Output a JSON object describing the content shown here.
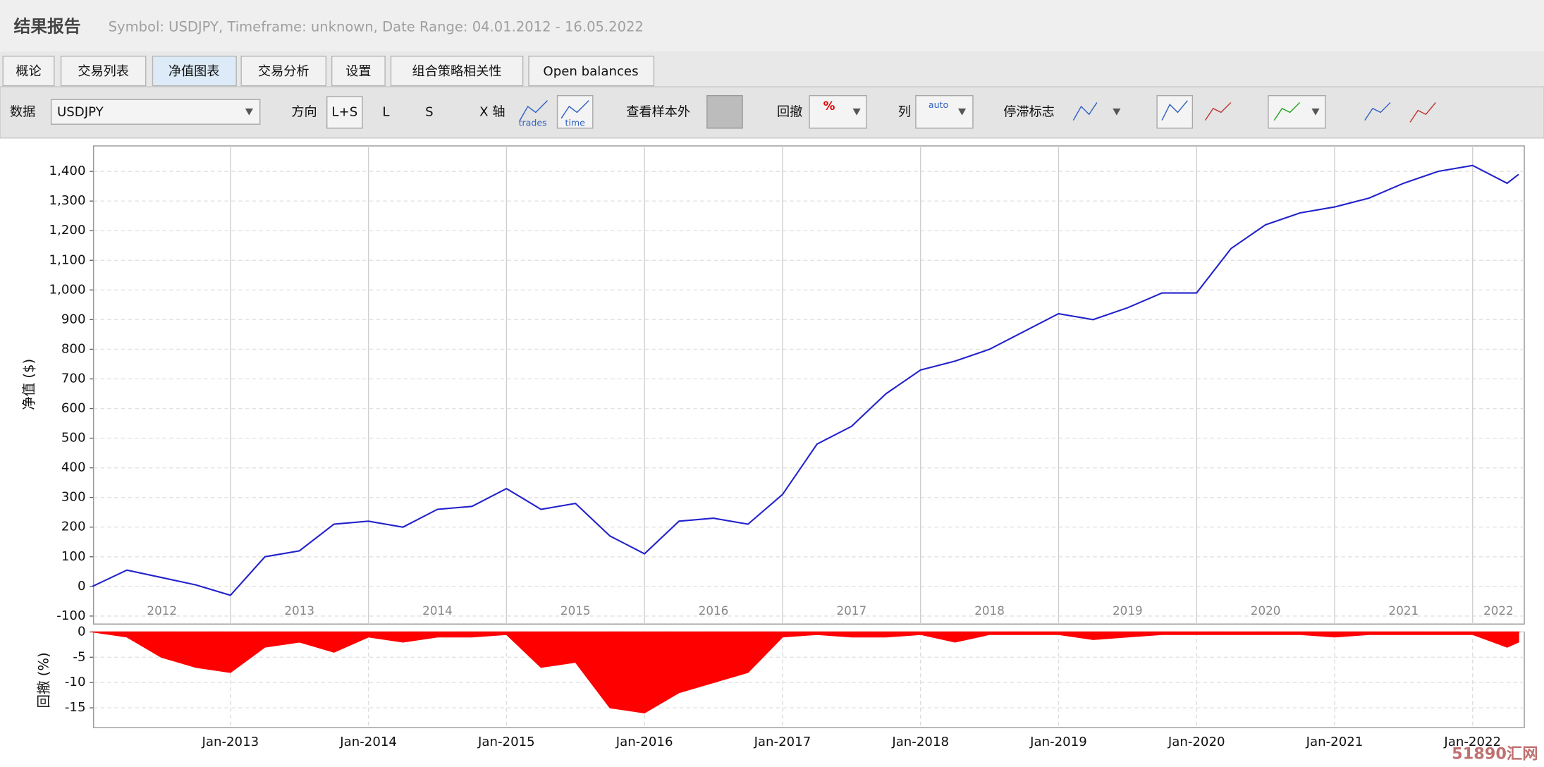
{
  "header": {
    "title": "结果报告",
    "subtitle": "Symbol: USDJPY, Timeframe: unknown, Date Range: 04.01.2012 - 16.05.2022"
  },
  "tabs": [
    "概论",
    "交易列表",
    "净值图表",
    "交易分析",
    "设置",
    "组合策略相关性",
    "Open balances"
  ],
  "toolbar": {
    "data_label": "数据",
    "data_value": "USDJPY",
    "direction": "方向",
    "direction_options": [
      "L+S",
      "L",
      "S"
    ],
    "x_axis": "X 轴",
    "x_axis_options": [
      "trades",
      "time"
    ],
    "out_of_sample": "查看样本外",
    "drawdown": "回撤",
    "drawdown_icon": "%",
    "columns": "列",
    "columns_icon": "auto",
    "stagnation": "停滞标志"
  },
  "chart_data": [
    {
      "type": "line",
      "ylabel": "净值 ($)",
      "color": "#2222cc",
      "xlim": [
        "2012-01-04",
        "2022-05-16"
      ],
      "year_labels": [
        "2012",
        "2013",
        "2014",
        "2015",
        "2016",
        "2017",
        "2018",
        "2019",
        "2020",
        "2021",
        "2022"
      ],
      "x": [
        "Jan-2012",
        "Apr-2012",
        "Jul-2012",
        "Oct-2012",
        "Jan-2013",
        "Apr-2013",
        "Jul-2013",
        "Oct-2013",
        "Jan-2014",
        "Apr-2014",
        "Jul-2014",
        "Oct-2014",
        "Jan-2015",
        "Apr-2015",
        "Jul-2015",
        "Oct-2015",
        "Jan-2016",
        "Apr-2016",
        "Jul-2016",
        "Oct-2016",
        "Jan-2017",
        "Apr-2017",
        "Jul-2017",
        "Oct-2017",
        "Jan-2018",
        "Apr-2018",
        "Jul-2018",
        "Oct-2018",
        "Jan-2019",
        "Apr-2019",
        "Jul-2019",
        "Oct-2019",
        "Jan-2020",
        "Apr-2020",
        "Jul-2020",
        "Oct-2020",
        "Jan-2021",
        "Apr-2021",
        "Jul-2021",
        "Oct-2021",
        "Jan-2022",
        "Apr-2022",
        "May-2022"
      ],
      "values": [
        0,
        55,
        30,
        5,
        -30,
        100,
        120,
        210,
        220,
        200,
        260,
        270,
        330,
        260,
        280,
        170,
        110,
        220,
        230,
        210,
        310,
        480,
        540,
        650,
        730,
        760,
        800,
        860,
        920,
        900,
        940,
        990,
        990,
        1140,
        1220,
        1260,
        1280,
        1310,
        1360,
        1400,
        1420,
        1360,
        1390
      ],
      "ylim": [
        -127,
        1486
      ],
      "yticks": [
        -100,
        0,
        100,
        200,
        300,
        400,
        500,
        600,
        700,
        800,
        900,
        {
          "value": 1000,
          "label": "1,000"
        },
        {
          "value": 1100,
          "label": "1,100"
        },
        {
          "value": 1200,
          "label": "1,200"
        },
        {
          "value": 1300,
          "label": "1,300"
        },
        {
          "value": 1400,
          "label": "1,400"
        }
      ],
      "grid": true
    },
    {
      "type": "area",
      "ylabel": "回撤 (%)",
      "color": "#ff0000",
      "xlim": [
        "2012-01-04",
        "2022-05-16"
      ],
      "x": [
        "Jan-2012",
        "Apr-2012",
        "Jul-2012",
        "Oct-2012",
        "Jan-2013",
        "Apr-2013",
        "Jul-2013",
        "Oct-2013",
        "Jan-2014",
        "Apr-2014",
        "Jul-2014",
        "Oct-2014",
        "Jan-2015",
        "Apr-2015",
        "Jul-2015",
        "Oct-2015",
        "Jan-2016",
        "Apr-2016",
        "Jul-2016",
        "Oct-2016",
        "Jan-2017",
        "Apr-2017",
        "Jul-2017",
        "Oct-2017",
        "Jan-2018",
        "Apr-2018",
        "Jul-2018",
        "Oct-2018",
        "Jan-2019",
        "Apr-2019",
        "Jul-2019",
        "Oct-2019",
        "Jan-2020",
        "Apr-2020",
        "Jul-2020",
        "Oct-2020",
        "Jan-2021",
        "Apr-2021",
        "Jul-2021",
        "Oct-2021",
        "Jan-2022",
        "Apr-2022",
        "May-2022"
      ],
      "values": [
        0,
        -1,
        -5,
        -7,
        -8,
        -3,
        -2,
        -4,
        -1,
        -2,
        -1,
        -1,
        -0.5,
        -7,
        -6,
        -15,
        -16,
        -12,
        -10,
        -8,
        -1,
        -0.5,
        -1,
        -1,
        -0.5,
        -2,
        -0.5,
        -0.5,
        -0.5,
        -1.5,
        -1,
        -0.5,
        -0.5,
        -0.5,
        -0.5,
        -0.5,
        -1,
        -0.5,
        -0.5,
        -0.5,
        -0.5,
        -3,
        -2
      ],
      "ylim": [
        -18.9,
        0
      ],
      "yticks": [
        0,
        -5,
        -10,
        -15
      ],
      "xticks": [
        "Jan-2013",
        "Jan-2014",
        "Jan-2015",
        "Jan-2016",
        "Jan-2017",
        "Jan-2018",
        "Jan-2019",
        "Jan-2020",
        "Jan-2021",
        "Jan-2022"
      ],
      "grid": true
    }
  ],
  "watermark": "51890汇网"
}
